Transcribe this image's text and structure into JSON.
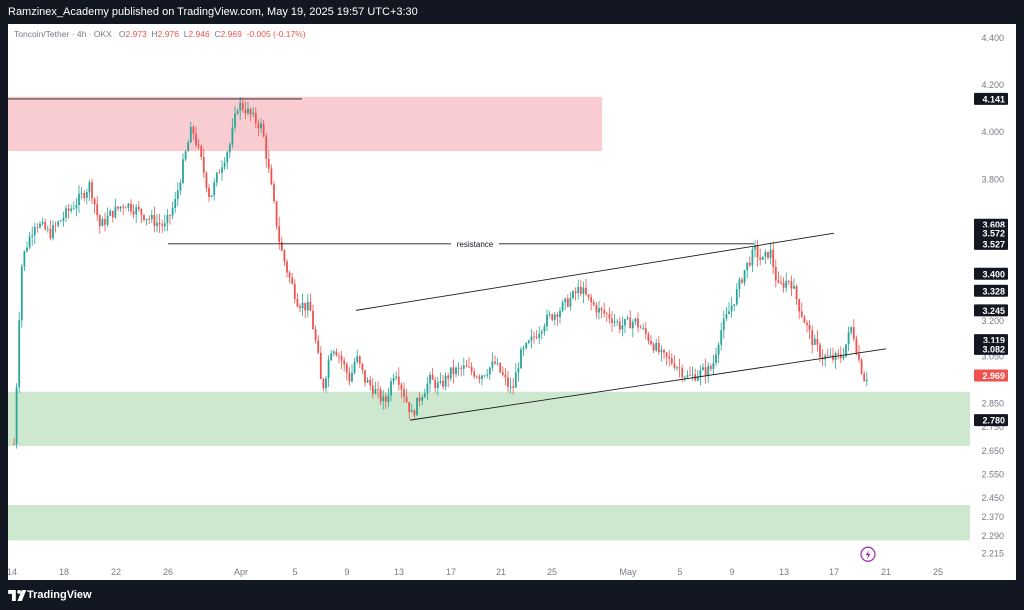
{
  "header": {
    "published_by": "Ramzinex_Academy published on TradingView.com, May 19, 2025 19:57 UTC+3:30"
  },
  "symbol": {
    "title": "Toncoin/Tether · 4h · OKX",
    "open_label": "O",
    "open": "2.973",
    "high_label": "H",
    "high": "2.976",
    "low_label": "L",
    "low": "2.946",
    "close_label": "C",
    "close": "2.969",
    "change": "-0.005 (-0.17%)"
  },
  "footer": {
    "brand": "TradingView"
  },
  "colors": {
    "up": "#26a69a",
    "down": "#ef5350",
    "supply_zone": "#f7c6cb",
    "demand_zone": "#c8e6c9",
    "frame": "#131722",
    "axis_text": "#787b86"
  },
  "icons": {
    "alert": "lightning-bolt-icon",
    "logo": "tradingview-logo-icon"
  },
  "chart_data": {
    "type": "candlestick",
    "x_ticks": [
      "14",
      "18",
      "22",
      "26",
      "Apr",
      "5",
      "9",
      "13",
      "17",
      "21",
      "25",
      "May",
      "5",
      "9",
      "13",
      "17",
      "21",
      "25"
    ],
    "y_ticks": [
      "4.400",
      "4.200",
      "4.000",
      "3.800",
      "3.600",
      "3.400",
      "3.200",
      "3.050",
      "2.850",
      "2.750",
      "2.650",
      "2.550",
      "2.450",
      "2.370",
      "2.290",
      "2.215"
    ],
    "ylim": [
      2.2,
      4.45
    ],
    "price_tags": [
      {
        "value": 4.141,
        "label": "4.141",
        "color": "#131722"
      },
      {
        "value": 3.608,
        "label": "3.608",
        "color": "#131722"
      },
      {
        "value": 3.572,
        "label": "3.572",
        "color": "#131722"
      },
      {
        "value": 3.527,
        "label": "3.527",
        "color": "#131722"
      },
      {
        "value": 3.4,
        "label": "3.400",
        "color": "#131722"
      },
      {
        "value": 3.328,
        "label": "3.328",
        "color": "#131722"
      },
      {
        "value": 3.245,
        "label": "3.245",
        "color": "#131722"
      },
      {
        "value": 3.119,
        "label": "3.119",
        "color": "#131722"
      },
      {
        "value": 3.082,
        "label": "3.082",
        "color": "#131722"
      },
      {
        "value": 2.969,
        "label": "2.969",
        "color": "#ef5350"
      },
      {
        "value": 2.78,
        "label": "2.780",
        "color": "#131722"
      }
    ],
    "annotations": [
      {
        "text": "resistance",
        "value": 3.527
      }
    ],
    "zones": [
      {
        "type": "supply",
        "from": 3.92,
        "to": 4.15
      },
      {
        "type": "demand",
        "from": 2.67,
        "to": 2.9
      },
      {
        "type": "demand",
        "from": 2.27,
        "to": 2.42
      }
    ],
    "close_path": [
      [
        14,
        2.68
      ],
      [
        15,
        2.78
      ],
      [
        16,
        2.92
      ],
      [
        18,
        2.96
      ],
      [
        20,
        3.4
      ],
      [
        25,
        3.5
      ],
      [
        35,
        3.62
      ],
      [
        50,
        3.57
      ],
      [
        65,
        3.65
      ],
      [
        80,
        3.72
      ],
      [
        90,
        3.78
      ],
      [
        100,
        3.6
      ],
      [
        110,
        3.65
      ],
      [
        125,
        3.7
      ],
      [
        140,
        3.66
      ],
      [
        155,
        3.62
      ],
      [
        165,
        3.6
      ],
      [
        175,
        3.7
      ],
      [
        185,
        3.9
      ],
      [
        192,
        4.02
      ],
      [
        200,
        3.9
      ],
      [
        210,
        3.72
      ],
      [
        220,
        3.85
      ],
      [
        230,
        3.95
      ],
      [
        238,
        4.12
      ],
      [
        245,
        4.1
      ],
      [
        255,
        4.05
      ],
      [
        262,
        4.02
      ],
      [
        270,
        3.8
      ],
      [
        280,
        3.52
      ],
      [
        288,
        3.4
      ],
      [
        298,
        3.28
      ],
      [
        310,
        3.25
      ],
      [
        318,
        3.05
      ],
      [
        322,
        2.9
      ],
      [
        332,
        3.1
      ],
      [
        340,
        3.05
      ],
      [
        350,
        2.95
      ],
      [
        356,
        3.05
      ],
      [
        365,
        2.95
      ],
      [
        372,
        2.92
      ],
      [
        385,
        2.85
      ],
      [
        395,
        3.0
      ],
      [
        405,
        2.88
      ],
      [
        412,
        2.8
      ],
      [
        420,
        2.88
      ],
      [
        430,
        2.95
      ],
      [
        440,
        2.92
      ],
      [
        450,
        2.98
      ],
      [
        465,
        3.0
      ],
      [
        480,
        2.97
      ],
      [
        495,
        3.02
      ],
      [
        505,
        2.95
      ],
      [
        512,
        2.9
      ],
      [
        520,
        3.05
      ],
      [
        532,
        3.12
      ],
      [
        545,
        3.2
      ],
      [
        560,
        3.25
      ],
      [
        572,
        3.3
      ],
      [
        580,
        3.34
      ],
      [
        590,
        3.28
      ],
      [
        600,
        3.24
      ],
      [
        610,
        3.22
      ],
      [
        620,
        3.18
      ],
      [
        635,
        3.2
      ],
      [
        650,
        3.12
      ],
      [
        662,
        3.05
      ],
      [
        675,
        3.02
      ],
      [
        688,
        2.96
      ],
      [
        700,
        2.98
      ],
      [
        712,
        3.0
      ],
      [
        720,
        3.15
      ],
      [
        735,
        3.3
      ],
      [
        745,
        3.42
      ],
      [
        755,
        3.5
      ],
      [
        762,
        3.45
      ],
      [
        770,
        3.5
      ],
      [
        778,
        3.34
      ],
      [
        790,
        3.38
      ],
      [
        800,
        3.25
      ],
      [
        812,
        3.12
      ],
      [
        822,
        3.05
      ],
      [
        832,
        3.04
      ],
      [
        842,
        3.05
      ],
      [
        852,
        3.18
      ],
      [
        858,
        3.05
      ],
      [
        864,
        2.96
      ],
      [
        868,
        2.969
      ]
    ],
    "trend_lines": [
      {
        "name": "resistance-line",
        "x1": 168,
        "y1": 3.527,
        "x2": 754,
        "y2": 3.527
      },
      {
        "name": "top-horizontal",
        "x1": 8,
        "y1": 4.141,
        "x2": 302,
        "y2": 4.141
      },
      {
        "name": "channel-upper",
        "x1": 356,
        "y1": 3.245,
        "x2": 834,
        "y2": 3.572
      },
      {
        "name": "channel-lower",
        "x1": 410,
        "y1": 2.78,
        "x2": 886,
        "y2": 3.082
      }
    ]
  }
}
